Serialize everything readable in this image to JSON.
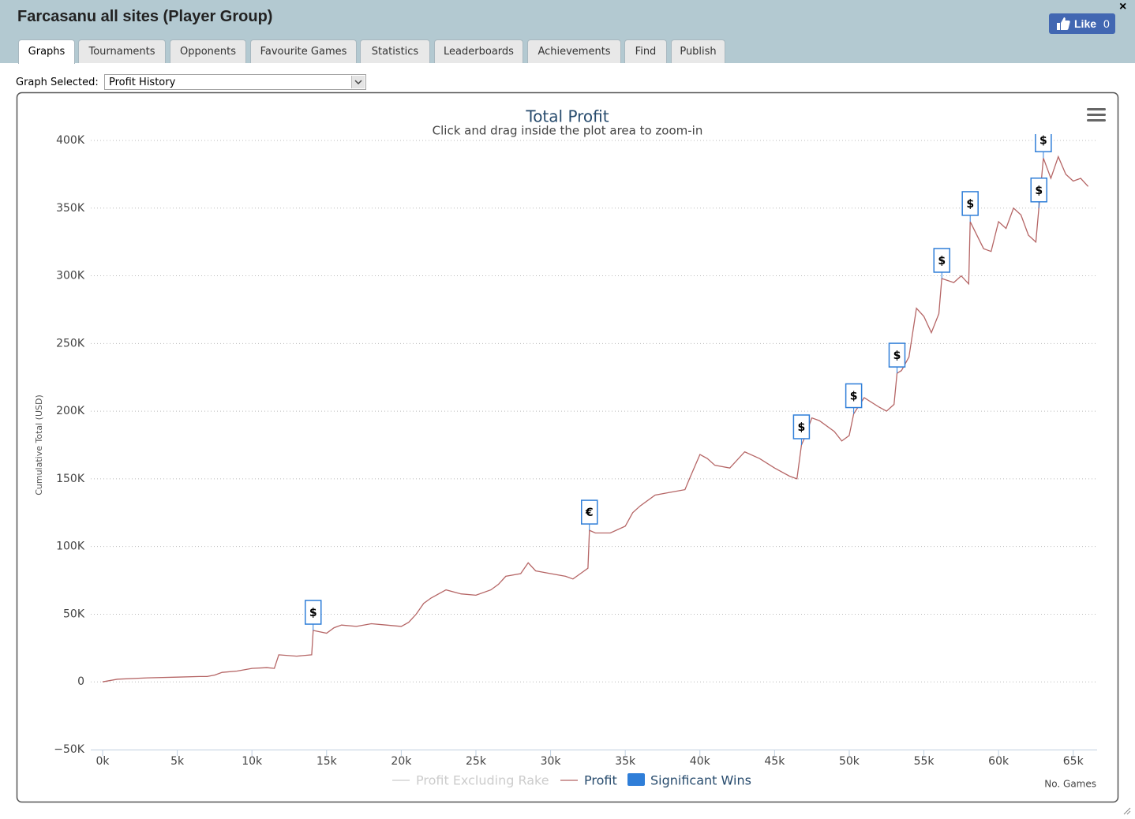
{
  "header": {
    "title": "Farcasanu all sites (Player Group)",
    "like_label": "Like",
    "like_count": "0",
    "close": "×"
  },
  "tabs": [
    "Graphs",
    "Tournaments",
    "Opponents",
    "Favourite Games",
    "Statistics",
    "Leaderboards",
    "Achievements",
    "Find",
    "Publish"
  ],
  "active_tab": 0,
  "graph_selector": {
    "label": "Graph Selected:",
    "value": "Profit History"
  },
  "chart_data": {
    "type": "line",
    "title": "Total Profit",
    "subtitle": "Click and drag inside the plot area to zoom-in",
    "y_label": "Cumulative Total (USD)",
    "x_label": "No. Games",
    "grid": true,
    "xlim": [
      0,
      66600
    ],
    "ylim": [
      -50000,
      400000
    ],
    "xticks": [
      {
        "value": 0,
        "label": "0k"
      },
      {
        "value": 5000,
        "label": "5k"
      },
      {
        "value": 10000,
        "label": "10k"
      },
      {
        "value": 15000,
        "label": "15k"
      },
      {
        "value": 20000,
        "label": "20k"
      },
      {
        "value": 25000,
        "label": "25k"
      },
      {
        "value": 30000,
        "label": "30k"
      },
      {
        "value": 35000,
        "label": "35k"
      },
      {
        "value": 40000,
        "label": "40k"
      },
      {
        "value": 45000,
        "label": "45k"
      },
      {
        "value": 50000,
        "label": "50k"
      },
      {
        "value": 55000,
        "label": "55k"
      },
      {
        "value": 60000,
        "label": "60k"
      },
      {
        "value": 65000,
        "label": "65k"
      }
    ],
    "yticks": [
      {
        "value": -50000,
        "label": "−50K"
      },
      0,
      {
        "value": 50000,
        "label": "50K"
      },
      {
        "value": 100000,
        "label": "100K"
      },
      {
        "value": 150000,
        "label": "150K"
      },
      {
        "value": 200000,
        "label": "200K"
      },
      {
        "value": 250000,
        "label": "250K"
      },
      {
        "value": 300000,
        "label": "300K"
      },
      {
        "value": 350000,
        "label": "350K"
      },
      {
        "value": 400000,
        "label": "400K"
      }
    ],
    "legend": [
      {
        "name": "Profit Excluding Rake",
        "color": "#cccccc",
        "visible": false
      }
    ],
    "series": [
      {
        "name": "Profit",
        "color": "#b56565",
        "x": [
          0,
          1000,
          3000,
          5000,
          6500,
          7000,
          7500,
          8000,
          9000,
          10000,
          11000,
          11500,
          11800,
          13000,
          14000,
          14100,
          15000,
          15500,
          16000,
          17000,
          18000,
          19000,
          20000,
          20500,
          21000,
          21500,
          22000,
          23000,
          24000,
          25000,
          26000,
          26500,
          27000,
          28000,
          28500,
          29000,
          30000,
          31000,
          31500,
          32000,
          32500,
          32600,
          33000,
          34000,
          35000,
          35500,
          36000,
          37000,
          38000,
          39000,
          39300,
          40000,
          40500,
          41000,
          42000,
          43000,
          44000,
          45000,
          46000,
          46500,
          46800,
          47000,
          47500,
          48000,
          49000,
          49500,
          50000,
          50300,
          51000,
          52000,
          52500,
          53000,
          53200,
          53500,
          54000,
          54500,
          55000,
          55500,
          56000,
          56200,
          57000,
          57500,
          58000,
          58100,
          59000,
          59500,
          60000,
          60500,
          61000,
          61500,
          62000,
          62500,
          62700,
          63000,
          63500,
          64000,
          64500,
          65000,
          65500,
          66000
        ],
        "values": [
          0,
          2000,
          3000,
          3500,
          4000,
          4000,
          5000,
          7000,
          8000,
          10000,
          10500,
          10000,
          20000,
          19000,
          20000,
          38000,
          36000,
          40000,
          42000,
          41000,
          43000,
          42000,
          41000,
          44000,
          50000,
          58000,
          62000,
          68000,
          65000,
          64000,
          68000,
          72000,
          78000,
          80000,
          88000,
          82000,
          80000,
          78000,
          76000,
          80000,
          84000,
          112000,
          110000,
          110000,
          115000,
          125000,
          130000,
          138000,
          140000,
          142000,
          150000,
          168000,
          165000,
          160000,
          158000,
          170000,
          165000,
          158000,
          152000,
          150000,
          175000,
          180000,
          195000,
          193000,
          185000,
          178000,
          182000,
          198000,
          210000,
          203000,
          200000,
          205000,
          228000,
          230000,
          240000,
          276000,
          270000,
          258000,
          272000,
          298000,
          295000,
          300000,
          294000,
          340000,
          320000,
          318000,
          340000,
          335000,
          350000,
          345000,
          330000,
          325000,
          350000,
          387000,
          372000,
          388000,
          375000,
          370000,
          372000,
          366000
        ]
      }
    ],
    "flags": {
      "name": "Significant Wins",
      "color": "#2f7ed8",
      "x": [
        14100,
        32600,
        46800,
        50300,
        53200,
        56200,
        58100,
        62700,
        63000
      ],
      "values": [
        38000,
        112000,
        175000,
        198000,
        228000,
        298000,
        340000,
        350000,
        387000
      ],
      "labels": [
        "$",
        "€",
        "$",
        "$",
        "$",
        "$",
        "$",
        "$",
        "$"
      ]
    }
  }
}
